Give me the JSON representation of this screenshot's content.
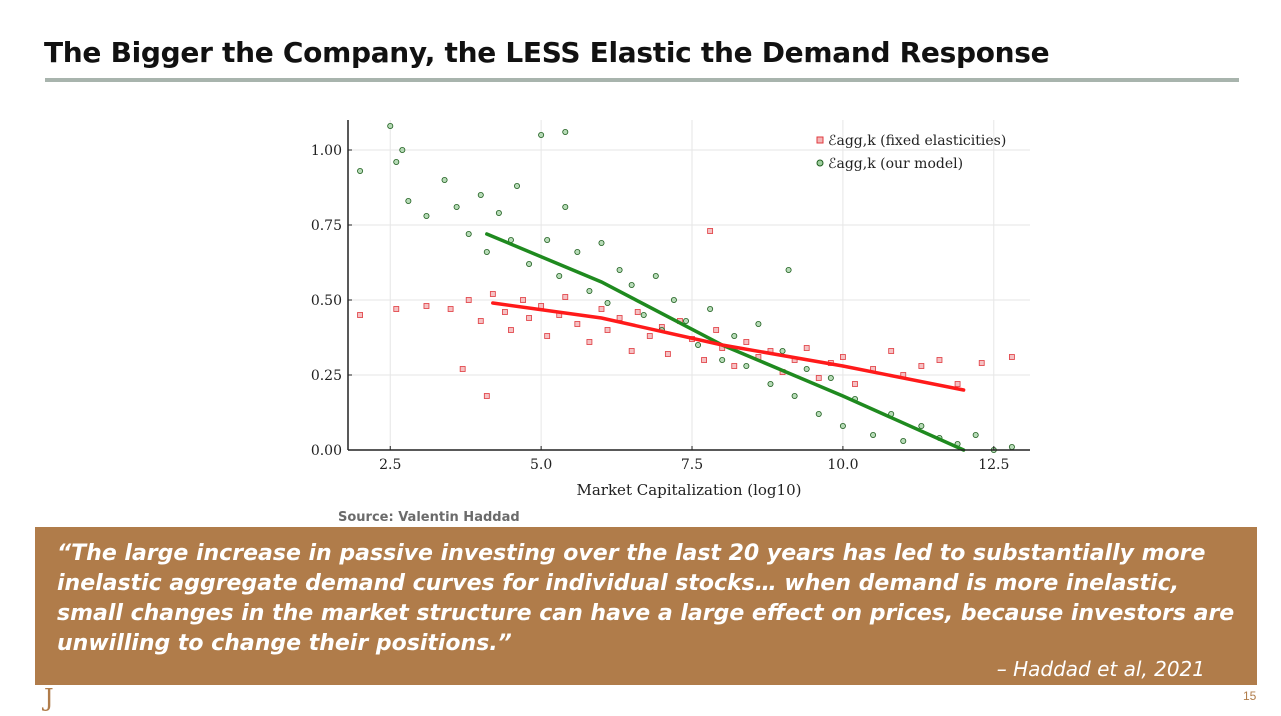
{
  "slide": {
    "title": "The Bigger the Company, the LESS Elastic the Demand Response",
    "source": "Source: Valentin Haddad",
    "quote": "“The large increase in passive investing over the last 20 years has led to substantially more inelastic aggregate demand curves for individual stocks… when demand is more inelastic, small changes in the market structure can have a large effect on prices, because investors are unwilling to change their positions.”",
    "attribution": "– Haddad et al, 2021",
    "logo_glyph": "J",
    "page_number": "15"
  },
  "colors": {
    "accent": "#b07c4a",
    "rule": "#a8b4ad",
    "fixed": "#e0393e",
    "model": "#1f7a1f"
  },
  "chart_data": {
    "type": "scatter",
    "xlabel": "Market Capitalization (log10)",
    "ylabel": "",
    "xlim": [
      1.8,
      13.1
    ],
    "ylim": [
      0.0,
      1.1
    ],
    "x_ticks": [
      "2.5",
      "5.0",
      "7.5",
      "10.0",
      "12.5"
    ],
    "y_ticks": [
      "0.00",
      "0.25",
      "0.50",
      "0.75",
      "1.00"
    ],
    "grid": true,
    "legend_position": "top-right",
    "series": [
      {
        "name": "ℰagg,k (fixed elasticities)",
        "marker": "square",
        "color": "#e0393e",
        "trend": [
          [
            4.2,
            0.49
          ],
          [
            6.0,
            0.44
          ],
          [
            8.0,
            0.35
          ],
          [
            10.0,
            0.28
          ],
          [
            12.0,
            0.2
          ]
        ],
        "x": [
          2.0,
          2.6,
          3.1,
          3.5,
          3.8,
          4.0,
          4.2,
          4.4,
          4.5,
          4.7,
          4.8,
          5.0,
          5.1,
          5.3,
          5.4,
          5.6,
          5.8,
          6.0,
          6.1,
          6.3,
          6.5,
          6.6,
          6.8,
          7.0,
          7.1,
          7.3,
          7.5,
          7.7,
          7.9,
          8.0,
          8.2,
          8.4,
          8.6,
          8.8,
          9.0,
          9.2,
          9.4,
          9.6,
          9.8,
          10.0,
          10.2,
          10.5,
          10.8,
          11.0,
          11.3,
          11.6,
          11.9,
          12.3,
          12.8,
          7.8,
          3.7,
          4.1
        ],
        "y": [
          0.45,
          0.47,
          0.48,
          0.47,
          0.5,
          0.43,
          0.52,
          0.46,
          0.4,
          0.5,
          0.44,
          0.48,
          0.38,
          0.45,
          0.51,
          0.42,
          0.36,
          0.47,
          0.4,
          0.44,
          0.33,
          0.46,
          0.38,
          0.41,
          0.32,
          0.43,
          0.37,
          0.3,
          0.4,
          0.34,
          0.28,
          0.36,
          0.31,
          0.33,
          0.26,
          0.3,
          0.34,
          0.24,
          0.29,
          0.31,
          0.22,
          0.27,
          0.33,
          0.25,
          0.28,
          0.3,
          0.22,
          0.29,
          0.31,
          0.73,
          0.27,
          0.18
        ]
      },
      {
        "name": "ℰagg,k (our model)",
        "marker": "circle",
        "color": "#1f7a1f",
        "trend": [
          [
            4.1,
            0.72
          ],
          [
            6.0,
            0.56
          ],
          [
            8.0,
            0.35
          ],
          [
            10.0,
            0.18
          ],
          [
            12.0,
            0.0
          ]
        ],
        "x": [
          2.0,
          2.5,
          2.6,
          2.8,
          3.1,
          3.4,
          3.6,
          3.8,
          4.0,
          4.1,
          4.3,
          4.5,
          4.6,
          4.8,
          5.0,
          5.1,
          5.3,
          5.4,
          5.6,
          5.8,
          6.0,
          6.1,
          6.3,
          6.5,
          6.7,
          6.9,
          7.0,
          7.2,
          7.4,
          7.6,
          7.8,
          8.0,
          8.2,
          8.4,
          8.6,
          8.8,
          9.0,
          9.2,
          9.4,
          9.6,
          9.8,
          10.0,
          10.2,
          10.5,
          10.8,
          11.0,
          11.3,
          11.6,
          11.9,
          12.2,
          12.5,
          12.8,
          5.4,
          2.7,
          9.1
        ],
        "y": [
          0.93,
          1.08,
          0.96,
          0.83,
          0.78,
          0.9,
          0.81,
          0.72,
          0.85,
          0.66,
          0.79,
          0.7,
          0.88,
          0.62,
          1.05,
          0.7,
          0.58,
          0.81,
          0.66,
          0.53,
          0.69,
          0.49,
          0.6,
          0.55,
          0.45,
          0.58,
          0.4,
          0.5,
          0.43,
          0.35,
          0.47,
          0.3,
          0.38,
          0.28,
          0.42,
          0.22,
          0.33,
          0.18,
          0.27,
          0.12,
          0.24,
          0.08,
          0.17,
          0.05,
          0.12,
          0.03,
          0.08,
          0.04,
          0.02,
          0.05,
          0.0,
          0.01,
          1.06,
          1.0,
          0.6
        ]
      }
    ]
  }
}
